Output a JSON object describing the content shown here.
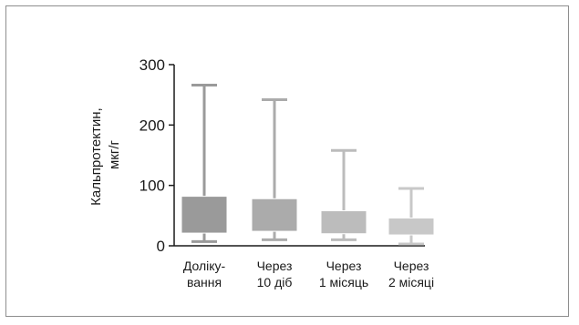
{
  "chart_data": {
    "type": "box",
    "ylabel": [
      "Кальпротектин,",
      "мкг/г"
    ],
    "ylim": [
      0,
      300
    ],
    "yticks": [
      "0",
      "100",
      "200",
      "300"
    ],
    "grid": false,
    "categories": [
      [
        "Доліку-",
        "вання"
      ],
      [
        "Через",
        "10 діб"
      ],
      [
        "Через",
        "1 місяць"
      ],
      [
        "Через",
        "2 місяці"
      ]
    ],
    "boxes": [
      {
        "min": 7,
        "q1": 21,
        "q3": 82,
        "max": 266,
        "color": "#9a9a9a"
      },
      {
        "min": 10,
        "q1": 24,
        "q3": 78,
        "max": 242,
        "color": "#ababab"
      },
      {
        "min": 10,
        "q1": 20,
        "q3": 58,
        "max": 158,
        "color": "#bcbcbc"
      },
      {
        "min": 3,
        "q1": 18,
        "q3": 46,
        "max": 95,
        "color": "#c8c8c8"
      }
    ],
    "axis_color": "#1a1a1a"
  }
}
